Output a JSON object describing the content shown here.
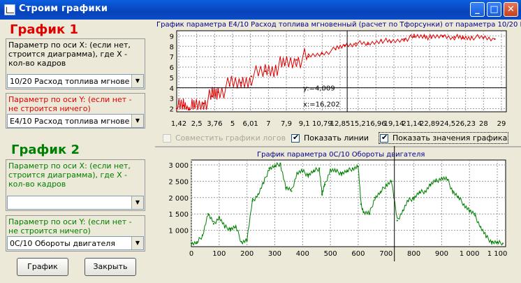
{
  "window": {
    "title": "Строим графики",
    "minimize_icon": "minimize-icon",
    "maximize_icon": "maximize-icon",
    "close_icon": "close-icon"
  },
  "panel1": {
    "title": "График 1",
    "x_label": "Параметр по оси X: (если нет, строится диаграмма), где X - кол-во кадров",
    "x_value": "10/20 Расход топлива мгновенны",
    "y_label": "Параметр по оси Y: (если нет - не строится ничего)",
    "y_value": "E4/10 Расход топлива мгновенны",
    "color": "#e00000"
  },
  "panel2": {
    "title": "График 2",
    "x_label": "Параметр по оси X: (если нет, строится диаграмма), где X - кол-во кадров",
    "x_value": "",
    "y_label": "Параметр по оси Y: (если нет - не строится ничего)",
    "y_value": "0C/10 Обороты двигателя",
    "color": "#008000"
  },
  "buttons": {
    "plot": "График",
    "close": "Закрыть"
  },
  "options": {
    "combine_logs": "Совместить графики логов",
    "show_lines": "Показать линии",
    "show_values": "Показать значения графика",
    "combine_checked": false,
    "lines_checked": true,
    "values_checked": true
  },
  "cursor_readout": {
    "y": "y:=4,009",
    "x": "x:=16,202"
  },
  "chart_data": [
    {
      "type": "line",
      "title": "График параметра E4/10 Расход топлива мгновенный (расчет по Тфорсунки) от параметра 10/20 Расход топлива м",
      "x_tick_labels": [
        "1,42",
        "2,5",
        "3,76",
        "5",
        "6,01",
        "7",
        "7,9",
        "9,1",
        "10,79",
        "12,85",
        "15,2",
        "16,96",
        "19,14",
        "21,14",
        "22,89",
        "24,5",
        "26,23",
        "28",
        "29"
      ],
      "y_ticks": [
        2,
        3,
        4,
        5,
        6,
        7,
        8,
        9
      ],
      "ylim": [
        1.7,
        9.5
      ],
      "color": "#e00000",
      "series": [
        {
          "x": [
            1.42,
            2.0,
            2.5,
            3.0,
            3.76,
            4.5,
            5.0,
            6.01,
            7.0,
            7.9,
            9.1,
            10.0,
            10.79,
            11.8,
            12.85,
            14.0,
            15.2,
            16.0,
            16.96,
            18.0,
            19.14,
            20.0,
            21.14,
            22.0,
            22.89,
            23.5,
            24.5,
            25.5,
            26.23,
            27.0,
            28.0,
            29.0
          ],
          "y": [
            2.0,
            2.3,
            1.9,
            2.2,
            2.5,
            3.2,
            3.6,
            4.2,
            4.5,
            5.1,
            5.6,
            6.0,
            6.3,
            6.7,
            7.0,
            7.3,
            7.7,
            8.1,
            8.3,
            8.2,
            8.6,
            8.4,
            8.7,
            8.9,
            9.0,
            8.8,
            9.0,
            8.9,
            8.8,
            8.9,
            8.8,
            8.7
          ]
        }
      ]
    },
    {
      "type": "line",
      "title": "График параметра 0C/10 Обороты двигателя",
      "x_ticks": [
        0,
        100,
        200,
        300,
        400,
        500,
        600,
        700,
        800,
        900,
        1000,
        1100
      ],
      "x_tick_labels": [
        "0",
        "100",
        "200",
        "300",
        "400",
        "500",
        "600",
        "700",
        "800",
        "900",
        "1 000",
        "1 100"
      ],
      "y_ticks": [
        1000,
        1500,
        2000,
        2500,
        3000
      ],
      "y_tick_labels": [
        "1 000",
        "1 500",
        "2 000",
        "2 500",
        "3 000"
      ],
      "xlim": [
        0,
        1130
      ],
      "ylim": [
        500,
        3150
      ],
      "color": "#008000",
      "series": [
        {
          "x": [
            0,
            20,
            40,
            60,
            80,
            100,
            120,
            140,
            160,
            180,
            200,
            220,
            240,
            260,
            280,
            300,
            320,
            340,
            360,
            380,
            400,
            420,
            440,
            460,
            470,
            480,
            500,
            520,
            540,
            560,
            580,
            600,
            610,
            620,
            640,
            660,
            680,
            700,
            720,
            740,
            760,
            780,
            800,
            820,
            840,
            860,
            880,
            900,
            920,
            940,
            960,
            980,
            1000,
            1020,
            1040,
            1060,
            1080,
            1100,
            1120
          ],
          "y": [
            600,
            610,
            850,
            1500,
            1200,
            1400,
            1100,
            1050,
            1100,
            650,
            700,
            1900,
            2100,
            2450,
            2900,
            2950,
            3050,
            2300,
            2200,
            2750,
            2800,
            2700,
            2800,
            2900,
            2100,
            2400,
            2850,
            2800,
            2750,
            2800,
            2900,
            2950,
            1800,
            1550,
            1500,
            2000,
            2150,
            2400,
            2500,
            1300,
            1600,
            1900,
            2000,
            2150,
            2200,
            2400,
            2500,
            2600,
            2550,
            2200,
            2000,
            1800,
            1600,
            1450,
            1100,
            800,
            650,
            620,
            600
          ]
        }
      ]
    }
  ]
}
